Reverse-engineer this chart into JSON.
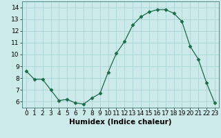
{
  "x": [
    0,
    1,
    2,
    3,
    4,
    5,
    6,
    7,
    8,
    9,
    10,
    11,
    12,
    13,
    14,
    15,
    16,
    17,
    18,
    19,
    20,
    21,
    22,
    23
  ],
  "y": [
    8.6,
    7.9,
    7.9,
    7.0,
    6.1,
    6.2,
    5.9,
    5.8,
    6.3,
    6.7,
    8.5,
    10.1,
    11.1,
    12.5,
    13.2,
    13.6,
    13.8,
    13.8,
    13.5,
    12.8,
    10.7,
    9.6,
    7.6,
    5.9
  ],
  "line_color": "#1a6b4a",
  "marker": "D",
  "marker_size": 2.5,
  "bg_color": "#cceaea",
  "grid_color": "#aad4d4",
  "xlabel": "Humidex (Indice chaleur)",
  "xlim": [
    -0.5,
    23.5
  ],
  "ylim": [
    5.5,
    14.5
  ],
  "yticks": [
    6,
    7,
    8,
    9,
    10,
    11,
    12,
    13,
    14
  ],
  "xticks": [
    0,
    1,
    2,
    3,
    4,
    5,
    6,
    7,
    8,
    9,
    10,
    11,
    12,
    13,
    14,
    15,
    16,
    17,
    18,
    19,
    20,
    21,
    22,
    23
  ],
  "label_fontsize": 7.5,
  "tick_fontsize": 6.5
}
